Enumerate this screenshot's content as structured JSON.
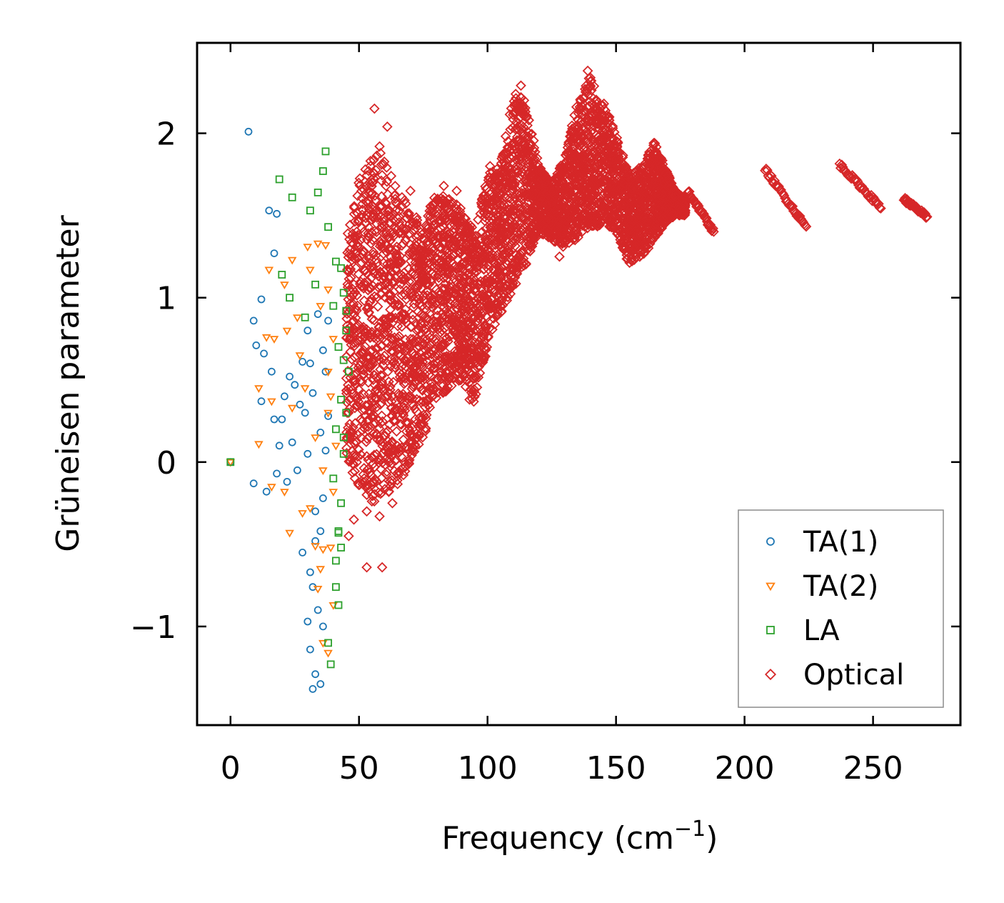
{
  "chart_data": {
    "type": "scatter",
    "title": "",
    "xlabel": "Frequency (cm",
    "xlabel_sup": "−1",
    "xlabel_end": ")",
    "ylabel": "Grüneisen parameter",
    "xlim": [
      -13,
      284
    ],
    "ylim": [
      -1.6,
      2.55
    ],
    "xticks": [
      0,
      50,
      100,
      150,
      200,
      250
    ],
    "xtick_labels": [
      "0",
      "50",
      "100",
      "150",
      "200",
      "250"
    ],
    "yticks": [
      -1,
      0,
      1,
      2
    ],
    "ytick_labels": [
      "−1",
      "0",
      "1",
      "2"
    ],
    "legend_position": "bottom-right",
    "series": [
      {
        "name": "TA(1)",
        "marker": "circle",
        "color": "#1f77b4",
        "points": [
          [
            0,
            0
          ],
          [
            7,
            2.01
          ],
          [
            15,
            1.53
          ],
          [
            18,
            1.51
          ],
          [
            17,
            1.27
          ],
          [
            12,
            0.99
          ],
          [
            9,
            0.86
          ],
          [
            10,
            0.71
          ],
          [
            13,
            0.66
          ],
          [
            16,
            0.55
          ],
          [
            12,
            0.37
          ],
          [
            17,
            0.26
          ],
          [
            9,
            -0.13
          ],
          [
            14,
            -0.18
          ],
          [
            22,
            -0.12
          ],
          [
            20,
            0.26
          ],
          [
            25,
            0.47
          ],
          [
            28,
            0.61
          ],
          [
            30,
            0.8
          ],
          [
            27,
            0.35
          ],
          [
            24,
            0.12
          ],
          [
            26,
            -0.05
          ],
          [
            28,
            -0.55
          ],
          [
            30,
            -0.97
          ],
          [
            31,
            -1.14
          ],
          [
            32,
            -1.38
          ],
          [
            33,
            -1.29
          ],
          [
            35,
            -1.35
          ],
          [
            36,
            -1.0
          ],
          [
            34,
            -0.9
          ],
          [
            32,
            -0.76
          ],
          [
            31,
            -0.67
          ],
          [
            33,
            -0.48
          ],
          [
            35,
            -0.42
          ],
          [
            36,
            -0.22
          ],
          [
            37,
            0.07
          ],
          [
            38,
            0.28
          ],
          [
            37,
            0.55
          ],
          [
            38,
            0.86
          ],
          [
            34,
            0.9
          ],
          [
            32,
            0.42
          ],
          [
            36,
            0.68
          ],
          [
            35,
            0.18
          ],
          [
            33,
            -0.3
          ],
          [
            30,
            0.05
          ],
          [
            29,
            0.3
          ],
          [
            31,
            0.6
          ],
          [
            23,
            0.52
          ],
          [
            21,
            0.4
          ],
          [
            19,
            0.1
          ],
          [
            18,
            -0.07
          ]
        ]
      },
      {
        "name": "TA(2)",
        "marker": "triangle-down",
        "color": "#ff7f0e",
        "points": [
          [
            0,
            0
          ],
          [
            15,
            1.17
          ],
          [
            21,
            1.08
          ],
          [
            24,
            1.23
          ],
          [
            30,
            1.31
          ],
          [
            31,
            1.17
          ],
          [
            34,
            1.33
          ],
          [
            37,
            1.32
          ],
          [
            38,
            1.05
          ],
          [
            14,
            0.76
          ],
          [
            17,
            0.75
          ],
          [
            22,
            0.8
          ],
          [
            27,
            0.65
          ],
          [
            11,
            0.45
          ],
          [
            16,
            0.37
          ],
          [
            11,
            0.11
          ],
          [
            16,
            -0.15
          ],
          [
            21,
            -0.18
          ],
          [
            23,
            -0.43
          ],
          [
            28,
            -0.31
          ],
          [
            31,
            -0.28
          ],
          [
            33,
            -0.51
          ],
          [
            36,
            -0.53
          ],
          [
            35,
            -0.65
          ],
          [
            34,
            -0.77
          ],
          [
            36,
            -1.1
          ],
          [
            38,
            -1.16
          ],
          [
            40,
            -0.87
          ],
          [
            39,
            -0.52
          ],
          [
            40,
            -0.18
          ],
          [
            41,
            0.1
          ],
          [
            39,
            0.4
          ],
          [
            40,
            0.75
          ],
          [
            38,
            0.3
          ],
          [
            36,
            -0.05
          ],
          [
            33,
            0.15
          ],
          [
            29,
            0.45
          ],
          [
            26,
            0.88
          ],
          [
            24,
            0.33
          ],
          [
            35,
            0.95
          ],
          [
            38,
            0.55
          ]
        ]
      },
      {
        "name": "LA",
        "marker": "square",
        "color": "#2ca02c",
        "points": [
          [
            0,
            0
          ],
          [
            19,
            1.72
          ],
          [
            24,
            1.61
          ],
          [
            31,
            1.53
          ],
          [
            34,
            1.64
          ],
          [
            37,
            1.89
          ],
          [
            36,
            1.77
          ],
          [
            38,
            1.43
          ],
          [
            41,
            1.22
          ],
          [
            43,
            1.18
          ],
          [
            44,
            1.03
          ],
          [
            45,
            0.8
          ],
          [
            46,
            0.55
          ],
          [
            45,
            0.3
          ],
          [
            44,
            0.05
          ],
          [
            43,
            -0.25
          ],
          [
            42,
            -0.43
          ],
          [
            41,
            -0.6
          ],
          [
            43,
            -0.52
          ],
          [
            42,
            -0.87
          ],
          [
            41,
            -0.76
          ],
          [
            39,
            -1.23
          ],
          [
            38,
            -1.1
          ],
          [
            42,
            -0.42
          ],
          [
            44,
            0.62
          ],
          [
            45,
            0.92
          ],
          [
            44,
            0.15
          ],
          [
            43,
            0.38
          ],
          [
            20,
            1.14
          ],
          [
            23,
            1.0
          ],
          [
            29,
            0.88
          ],
          [
            33,
            1.08
          ],
          [
            40,
            0.95
          ],
          [
            42,
            0.7
          ],
          [
            41,
            0.2
          ],
          [
            40,
            -0.1
          ]
        ]
      },
      {
        "name": "Optical",
        "marker": "diamond",
        "color": "#d62728",
        "bands": [
          {
            "x0": 45,
            "x1": 60,
            "top": [
              1.35,
              1.75,
              1.85,
              1.9
            ],
            "bottom": [
              0.0,
              -0.15,
              -0.25,
              -0.2
            ]
          },
          {
            "x0": 60,
            "x1": 75,
            "top": [
              1.85,
              1.65,
              1.55,
              1.45
            ],
            "bottom": [
              -0.2,
              -0.15,
              0.0,
              0.15
            ]
          },
          {
            "x0": 75,
            "x1": 90,
            "top": [
              1.45,
              1.65,
              1.6,
              1.55
            ],
            "bottom": [
              0.15,
              0.35,
              0.45,
              0.5
            ]
          },
          {
            "x0": 90,
            "x1": 105,
            "top": [
              1.55,
              1.4,
              1.75,
              1.8
            ],
            "bottom": [
              0.5,
              0.35,
              0.7,
              0.9
            ]
          },
          {
            "x0": 105,
            "x1": 120,
            "top": [
              1.8,
              2.25,
              2.2,
              1.8
            ],
            "bottom": [
              0.9,
              1.05,
              1.2,
              1.4
            ]
          },
          {
            "x0": 120,
            "x1": 135,
            "top": [
              1.8,
              1.7,
              1.85,
              2.2
            ],
            "bottom": [
              1.4,
              1.35,
              1.3,
              1.35
            ]
          },
          {
            "x0": 135,
            "x1": 150,
            "top": [
              2.2,
              2.35,
              2.2,
              2.0
            ],
            "bottom": [
              1.35,
              1.4,
              1.45,
              1.4
            ]
          },
          {
            "x0": 150,
            "x1": 165,
            "top": [
              2.0,
              1.75,
              1.8,
              1.95
            ],
            "bottom": [
              1.4,
              1.2,
              1.25,
              1.35
            ]
          },
          {
            "x0": 165,
            "x1": 177,
            "top": [
              1.95,
              1.8,
              1.65,
              1.6
            ],
            "bottom": [
              1.35,
              1.45,
              1.5,
              1.5
            ]
          }
        ],
        "segments": [
          {
            "x0": 178,
            "x1": 188,
            "y0": 1.65,
            "y1": 1.4
          },
          {
            "x0": 208,
            "x1": 224,
            "y0": 1.78,
            "y1": 1.43
          },
          {
            "x0": 237,
            "x1": 253,
            "y0": 1.81,
            "y1": 1.55
          },
          {
            "x0": 262,
            "x1": 271,
            "y0": 1.6,
            "y1": 1.49
          }
        ],
        "outliers": [
          [
            56,
            2.15
          ],
          [
            61,
            2.04
          ],
          [
            58,
            1.92
          ],
          [
            53,
            -0.3
          ],
          [
            58,
            -0.33
          ],
          [
            53,
            -0.64
          ],
          [
            59,
            -0.64
          ],
          [
            63,
            -0.25
          ],
          [
            48,
            -0.35
          ],
          [
            46,
            -0.45
          ],
          [
            139,
            2.38
          ],
          [
            113,
            2.29
          ],
          [
            93,
            0.38
          ],
          [
            101,
            1.8
          ],
          [
            128,
            1.25
          ],
          [
            70,
            1.65
          ],
          [
            83,
            1.68
          ],
          [
            88,
            1.65
          ]
        ]
      }
    ]
  }
}
